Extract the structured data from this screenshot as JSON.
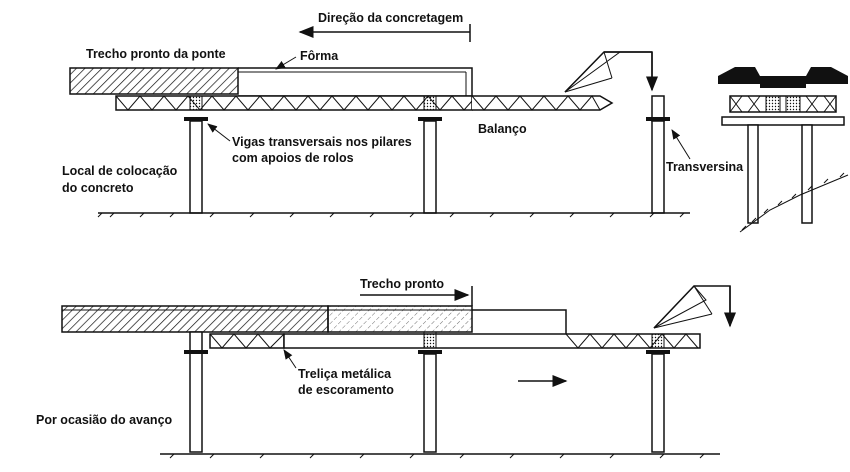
{
  "top_view": {
    "direction_label": "Direção da concretagem",
    "finished_section_label": "Trecho pronto da ponte",
    "formwork_label": "Fôrma",
    "cross_beams_label_line1": "Vigas transversais nos pilares",
    "cross_beams_label_line2": "com apoios de rolos",
    "cantilever_label": "Balanço",
    "concrete_placement_label_line1": "Local de colocação",
    "concrete_placement_label_line2": "do concreto",
    "transverse_label": "Transversina"
  },
  "bottom_view": {
    "finished_section_label": "Trecho pronto",
    "truss_label_line1": "Treliça metálica",
    "truss_label_line2": "de escoramento",
    "advance_label": "Por ocasião do avanço"
  }
}
